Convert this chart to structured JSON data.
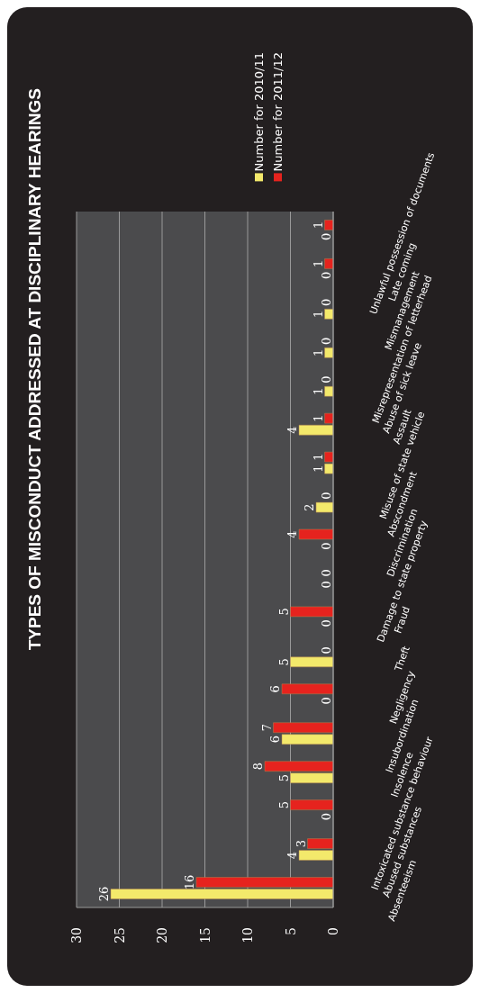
{
  "chart_data": {
    "type": "bar",
    "orientation": "horizontal",
    "title": "TYPES OF MISCONDUCT ADDRESSED AT DISCIPLINARY HEARINGS",
    "categories": [
      "Unlawful possession of documents",
      "Late coming",
      "Mismanagement",
      "Misrepresentation of letterhead",
      "Abuse of sick leave",
      "Assault",
      "Misuse of state vehicle",
      "Abscondment",
      "Discrimination",
      "Damage to state property",
      "Fraud",
      "Theft",
      "Negligency",
      "Insubordination",
      "Insolence",
      "Intoxicated substance behaviour",
      "Abused substances",
      "Absenteeism"
    ],
    "series": [
      {
        "name": "Number for 2011/12",
        "color": "#e6231e",
        "values": [
          1,
          1,
          0,
          0,
          0,
          1,
          1,
          0,
          4,
          0,
          5,
          0,
          6,
          7,
          8,
          5,
          3,
          16
        ]
      },
      {
        "name": "Number for 2010/11",
        "color": "#f3e96b",
        "values": [
          0,
          0,
          1,
          1,
          1,
          4,
          1,
          2,
          0,
          0,
          0,
          5,
          0,
          6,
          5,
          0,
          4,
          26
        ]
      }
    ],
    "xlim": [
      30,
      0
    ],
    "xticks": [
      0,
      5,
      10,
      15,
      20,
      25,
      30
    ],
    "grid": "x",
    "legend": "top",
    "data_labels": true
  }
}
